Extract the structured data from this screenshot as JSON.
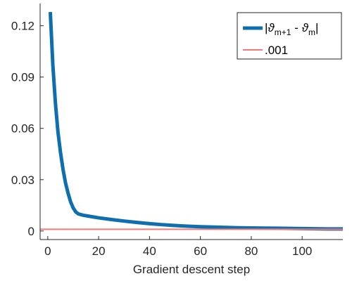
{
  "chart_data": {
    "type": "line",
    "title": "",
    "xlabel": "Gradient descent step",
    "ylabel": "",
    "xlim": [
      -3,
      116
    ],
    "ylim": [
      -0.005,
      0.133
    ],
    "x_ticks": [
      0,
      20,
      40,
      60,
      80,
      100
    ],
    "y_ticks": [
      0,
      0.03,
      0.06,
      0.09,
      0.12
    ],
    "x_tick_labels": [
      "0",
      "20",
      "40",
      "60",
      "80",
      "100"
    ],
    "y_tick_labels": [
      "0",
      "0.03",
      "0.06",
      "0.09",
      "0.12"
    ],
    "grid": false,
    "legend_position": "top-right",
    "legend": {
      "abs_bar_left": "|",
      "theta": "ϑ",
      "sub_m_plus_1": "m+1",
      "minus": " - ",
      "sub_m": "m",
      "abs_bar_right": "|",
      "threshold_label": ".001"
    },
    "series": [
      {
        "color": "#0F6EAE",
        "x": [
          1,
          2,
          3,
          4,
          5,
          6,
          7,
          8,
          9,
          10,
          11,
          12,
          14,
          16,
          18,
          20,
          25,
          30,
          35,
          40,
          45,
          50,
          55,
          60,
          65,
          70,
          75,
          80,
          85,
          90,
          95,
          100,
          105,
          110,
          116
        ],
        "values": [
          0.128,
          0.097,
          0.075,
          0.058,
          0.046,
          0.036,
          0.028,
          0.022,
          0.017,
          0.0135,
          0.0112,
          0.01,
          0.0092,
          0.0087,
          0.0082,
          0.0077,
          0.0067,
          0.0058,
          0.005,
          0.0043,
          0.0037,
          0.0032,
          0.0028,
          0.0025,
          0.0023,
          0.0021,
          0.0019,
          0.0018,
          0.0017,
          0.0016,
          0.0015,
          0.0014,
          0.0013,
          0.0012,
          0.0012
        ]
      },
      {
        "color": "#F07A78",
        "x": [
          -3,
          116
        ],
        "values": [
          0.001,
          0.001
        ]
      }
    ]
  }
}
